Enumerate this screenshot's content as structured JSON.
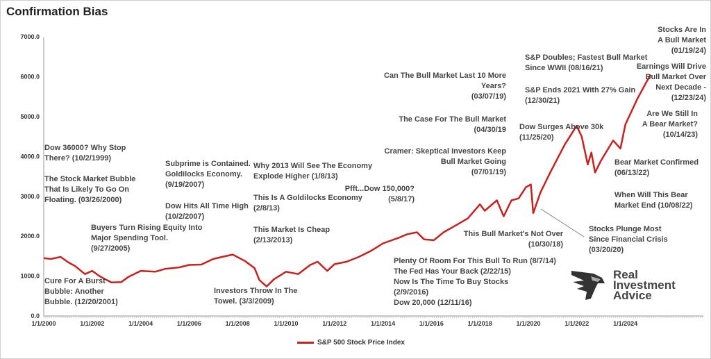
{
  "chart_data": {
    "type": "line",
    "title": "Confirmation Bias",
    "xlabel": "",
    "ylabel": "",
    "ylim": [
      0,
      7000
    ],
    "xlim": [
      "1/1/2000",
      "2027"
    ],
    "grid": false,
    "legend": "bottom",
    "y_ticks": [
      "0.0",
      "1000.0",
      "2000.0",
      "3000.0",
      "4000.0",
      "5000.0",
      "6000.0",
      "7000.0"
    ],
    "x_ticks": [
      "1/1/2000",
      "1/1/2002",
      "1/1/2004",
      "1/1/2006",
      "1/1/2008",
      "1/1/2010",
      "1/1/2012",
      "1/1/2014",
      "1/1/2016",
      "1/1/2018",
      "1/1/2020",
      "1/1/2022",
      "1/1/2024"
    ],
    "series": [
      {
        "name": "S&P 500 Stock Price Index",
        "color": "#c8201e",
        "x": [
          2000.0,
          2000.3,
          2000.7,
          2001.0,
          2001.3,
          2001.7,
          2002.0,
          2002.3,
          2002.6,
          2002.8,
          2003.2,
          2003.5,
          2004.0,
          2004.6,
          2005.0,
          2005.6,
          2006.0,
          2006.5,
          2007.0,
          2007.5,
          2007.8,
          2008.3,
          2008.7,
          2008.9,
          2009.2,
          2009.5,
          2010.0,
          2010.5,
          2011.0,
          2011.3,
          2011.7,
          2012.0,
          2012.5,
          2013.0,
          2013.5,
          2014.0,
          2014.6,
          2015.0,
          2015.4,
          2015.7,
          2016.1,
          2016.5,
          2017.0,
          2017.5,
          2018.0,
          2018.2,
          2018.7,
          2018.98,
          2019.3,
          2019.6,
          2019.9,
          2020.1,
          2020.2,
          2020.5,
          2020.9,
          2021.2,
          2021.5,
          2021.99,
          2022.2,
          2022.45,
          2022.6,
          2022.75,
          2023.0,
          2023.5,
          2023.8,
          2024.0,
          2024.5,
          2024.9,
          2025.05
        ],
        "y": [
          1450,
          1430,
          1480,
          1350,
          1250,
          1050,
          1130,
          1000,
          900,
          840,
          850,
          980,
          1130,
          1110,
          1180,
          1220,
          1280,
          1290,
          1430,
          1500,
          1540,
          1380,
          1200,
          900,
          740,
          920,
          1110,
          1050,
          1280,
          1360,
          1130,
          1300,
          1360,
          1480,
          1630,
          1820,
          1950,
          2050,
          2100,
          1920,
          1900,
          2100,
          2270,
          2450,
          2800,
          2640,
          2900,
          2500,
          2900,
          2950,
          3230,
          3300,
          2580,
          3100,
          3600,
          3950,
          4300,
          4770,
          4500,
          3800,
          4100,
          3600,
          3900,
          4400,
          4200,
          4800,
          5450,
          5900,
          6050
        ]
      }
    ]
  },
  "annotations": [
    "Dow 36000? Why Stop\nThere?  (10/2/1999)",
    "The Stock Market Bubble\nThat Is Likely To Go On\nFloating. (03/26/2000)",
    "Cure For A Burst\nBubble: Another\nBubble.  (12/20/2001)",
    "Buyers Turn Rising Equity Into\nMajor Spending Tool.\n(9/27/2005)",
    "Subprime is Contained.\nGoldilocks Economy.\n(9/19/2007)",
    "Dow Hits All Time High\n(10/2/2007)",
    "Investors Throw In The\nTowel.  (3/3/2009)",
    "Why 2013 Will See The Economy\nExplode Higher (1/8/13)",
    "This Is A Goldilocks Economy\n(2/8/13)",
    "This Market Is Cheap\n(2/13/2013)",
    "Plenty Of Room For This Bull To Run (8/7/14)\nThe Fed Has Your Back (2/22/15)\nNow Is The Time To Buy Stocks\n(2/9/2016)\nDow 20,000  (12/11/16)",
    "Can The Bull Market Last 10 More\nYears?\n(03/07/19)",
    "The Case For The Bull Market\n(04/30/19",
    "Cramer: Skeptical Investors Keep\nBull Market Going\n(07/01/19)",
    "Pfft...Dow 150,000?\n(5/8/17)",
    "This Bull Market's Not Over\n(10/30/18)",
    "Stocks Plunge Most\nSince Financial Crisis\n(03/20/20)",
    "Dow Surges Above 30k\n(11/25/20)",
    "S&P Doubles; Fastest Bull Market\nSince WWII (08/16/21)",
    "S&P Ends 2021 With 27% Gain\n(12/30/21)",
    "Stocks Are In\nA Bull Market\n(01/19/24)",
    "Earnings Will Drive\nBull Market Over\nNext Decade -\n(12/23/24)",
    "Are We Still In\nA Bear Market?\n(10/14/23)",
    "Bear Market Confirmed\n(06/13/22)",
    "When Will This Bear\nMarket End (10/08/22)"
  ],
  "logo": {
    "text": "Real\nInvestment\nAdvice"
  }
}
